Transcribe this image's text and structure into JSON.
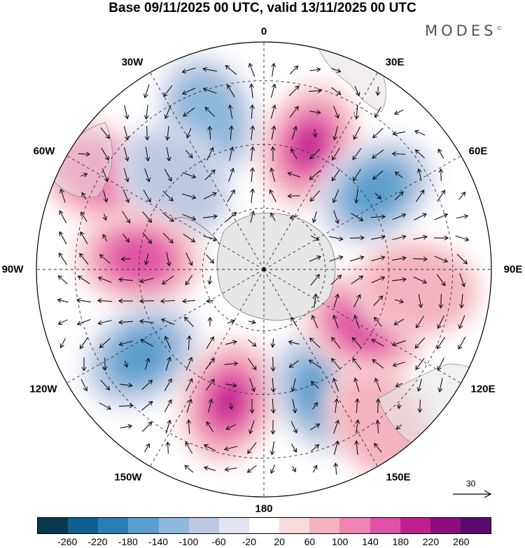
{
  "title": "Base 09/11/2025 00 UTC, valid 13/11/2025 00 UTC",
  "brand": "MODES",
  "brand_mark": "©",
  "longitude_labels": {
    "n": "0",
    "e30": "30E",
    "e60": "60E",
    "e90": "90E",
    "e120": "120E",
    "e150": "150E",
    "s": "180",
    "w150": "150W",
    "w120": "120W",
    "w90": "90W",
    "w60": "60W",
    "w30": "30W"
  },
  "reference_vector": {
    "value": "30"
  },
  "colorbar": {
    "colors": [
      "#08384f",
      "#0f5f8f",
      "#2a7fb8",
      "#5a9fcd",
      "#8eb8dc",
      "#bdc9e3",
      "#e2e4f0",
      "#ffffff",
      "#f8d9dc",
      "#f4b3c0",
      "#ee85b2",
      "#e052a5",
      "#c0208f",
      "#8f0e7e",
      "#5b0a6e"
    ],
    "ticks": [
      "-260",
      "-220",
      "-180",
      "-140",
      "-100",
      "-60",
      "-20",
      "20",
      "60",
      "100",
      "140",
      "180",
      "220",
      "260"
    ]
  },
  "anomalies": [
    {
      "sign": 1,
      "level": 4,
      "lon": 20,
      "r": 0.58
    },
    {
      "sign": -1,
      "level": 3,
      "lon": 55,
      "r": 0.6
    },
    {
      "sign": -1,
      "level": 2,
      "lon": -20,
      "r": 0.72
    },
    {
      "sign": 1,
      "level": 2,
      "lon": -60,
      "r": 0.85
    },
    {
      "sign": -1,
      "level": 1,
      "lon": -45,
      "r": 0.55
    },
    {
      "sign": 1,
      "level": 3,
      "lon": -85,
      "r": 0.55
    },
    {
      "sign": -1,
      "level": 3,
      "lon": -125,
      "r": 0.66
    },
    {
      "sign": 1,
      "level": 4,
      "lon": -165,
      "r": 0.6
    },
    {
      "sign": -1,
      "level": 3,
      "lon": 155,
      "r": 0.6
    },
    {
      "sign": 1,
      "level": 3,
      "lon": 120,
      "r": 0.5
    },
    {
      "sign": 1,
      "level": 1,
      "lon": 97,
      "r": 0.68
    },
    {
      "sign": 1,
      "level": 1,
      "lon": 143,
      "r": 0.85
    }
  ]
}
